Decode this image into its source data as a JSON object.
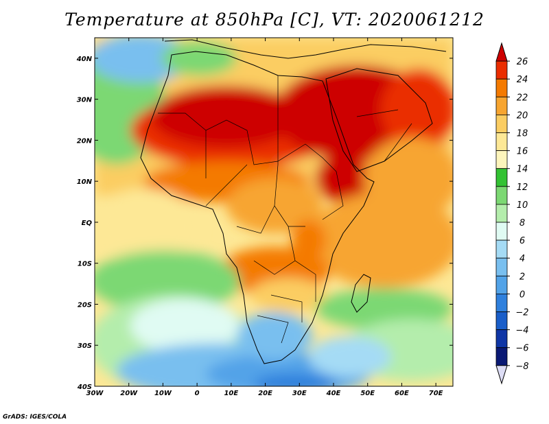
{
  "title": "Temperature at 850hPa [C], VT: 2020061212",
  "credit": "GrADS: IGES/COLA",
  "map": {
    "lon_range": [
      -30,
      75
    ],
    "lat_range": [
      -40,
      45
    ],
    "x_ticks": [
      {
        "lon": -30,
        "label": "30W"
      },
      {
        "lon": -20,
        "label": "20W"
      },
      {
        "lon": -10,
        "label": "10W"
      },
      {
        "lon": 0,
        "label": "0"
      },
      {
        "lon": 10,
        "label": "10E"
      },
      {
        "lon": 20,
        "label": "20E"
      },
      {
        "lon": 30,
        "label": "30E"
      },
      {
        "lon": 40,
        "label": "40E"
      },
      {
        "lon": 50,
        "label": "50E"
      },
      {
        "lon": 60,
        "label": "60E"
      },
      {
        "lon": 70,
        "label": "70E"
      }
    ],
    "y_ticks": [
      {
        "lat": 40,
        "label": "40N"
      },
      {
        "lat": 30,
        "label": "30N"
      },
      {
        "lat": 20,
        "label": "20N"
      },
      {
        "lat": 10,
        "label": "10N"
      },
      {
        "lat": 0,
        "label": "EQ"
      },
      {
        "lat": -10,
        "label": "10S"
      },
      {
        "lat": -20,
        "label": "20S"
      },
      {
        "lat": -30,
        "label": "30S"
      },
      {
        "lat": -40,
        "label": "40S"
      }
    ]
  },
  "colorbar": {
    "labels": [
      "26",
      "24",
      "22",
      "20",
      "18",
      "16",
      "14",
      "12",
      "10",
      "8",
      "6",
      "4",
      "2",
      "0",
      "−2",
      "−4",
      "−6",
      "−8"
    ],
    "colors": [
      "#cd0000",
      "#ea2d00",
      "#f47a00",
      "#f7a530",
      "#fbcd62",
      "#fde896",
      "#fdf5bc",
      "#33c233",
      "#7cd873",
      "#b4edac",
      "#e0fbf3",
      "#a5dbf5",
      "#79bfef",
      "#52a3e8",
      "#2f80dd",
      "#1a5ec9",
      "#0f36a6",
      "#0a1974",
      "#ddddf5"
    ]
  }
}
